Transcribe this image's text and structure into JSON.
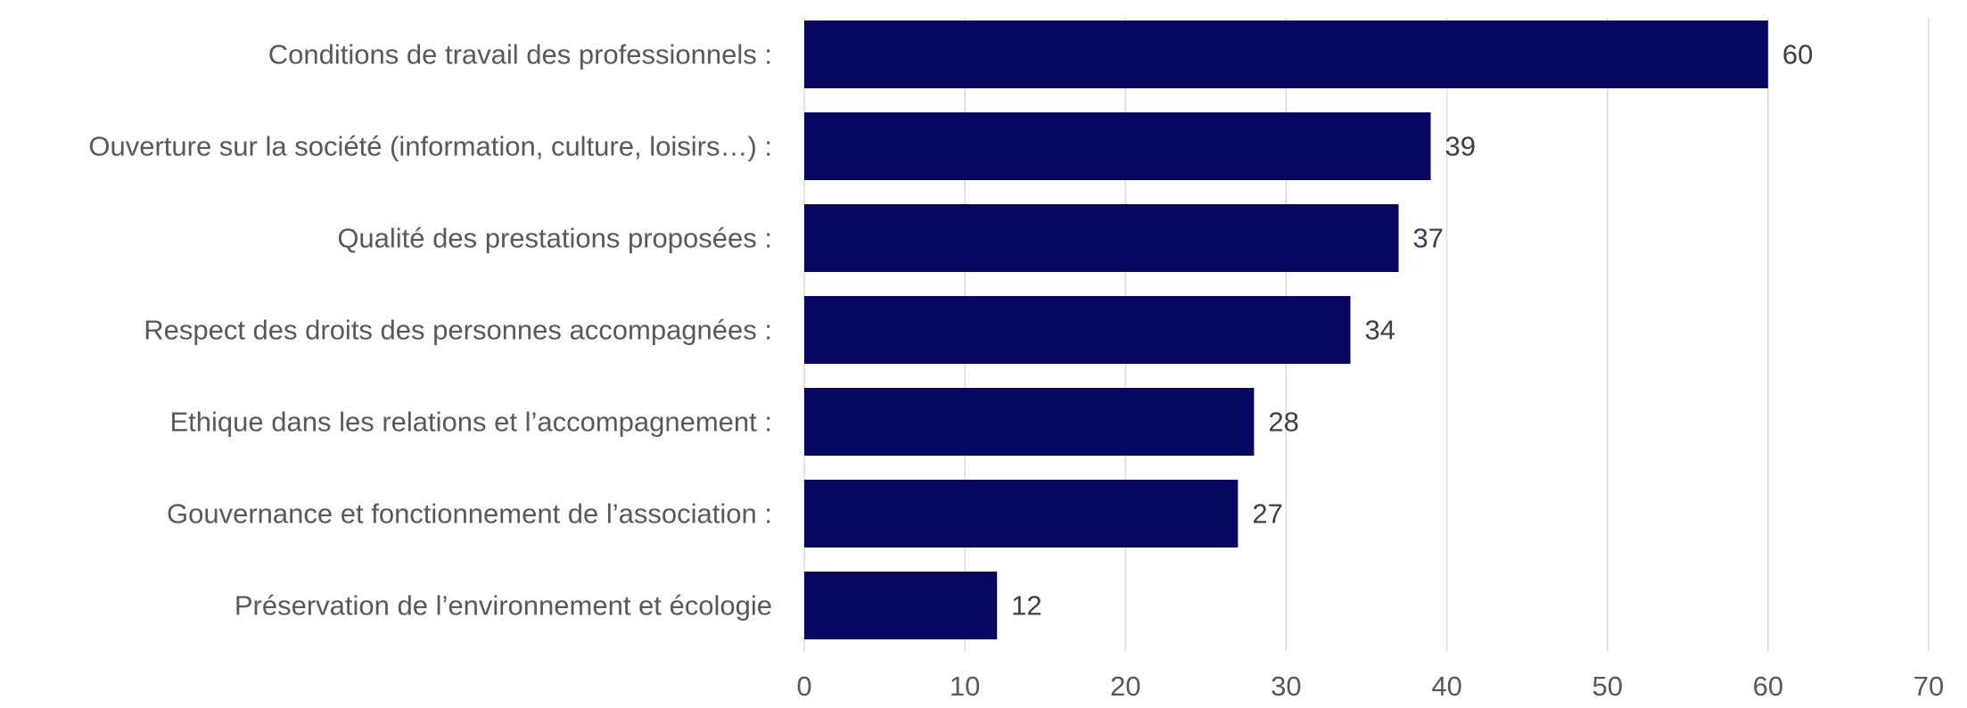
{
  "chart_data": {
    "type": "bar",
    "orientation": "horizontal",
    "categories": [
      "Conditions de travail des professionnels :",
      "Ouverture sur la société (information, culture, loisirs…) :",
      "Qualité des prestations proposées :",
      "Respect des droits des personnes accompagnées :",
      "Ethique dans les relations et l’accompagnement :",
      "Gouvernance et fonctionnement de l’association :",
      "Préservation de l’environnement et écologie"
    ],
    "values": [
      60,
      39,
      37,
      34,
      28,
      27,
      12
    ],
    "data_labels": [
      "60",
      "39",
      "37",
      "34",
      "28",
      "27",
      "12"
    ],
    "xlim": [
      0,
      70
    ],
    "x_ticks": [
      0,
      10,
      20,
      30,
      40,
      50,
      60,
      70
    ],
    "x_tick_labels": [
      "0",
      "10",
      "20",
      "30",
      "40",
      "50",
      "60",
      "70"
    ],
    "grid": "vertical",
    "legend": "none",
    "title": "",
    "xlabel": "",
    "ylabel": "",
    "colors": {
      "bar": "#070760",
      "grid": "#d9d9d9",
      "category_text": "#595959",
      "value_text": "#404040"
    }
  }
}
